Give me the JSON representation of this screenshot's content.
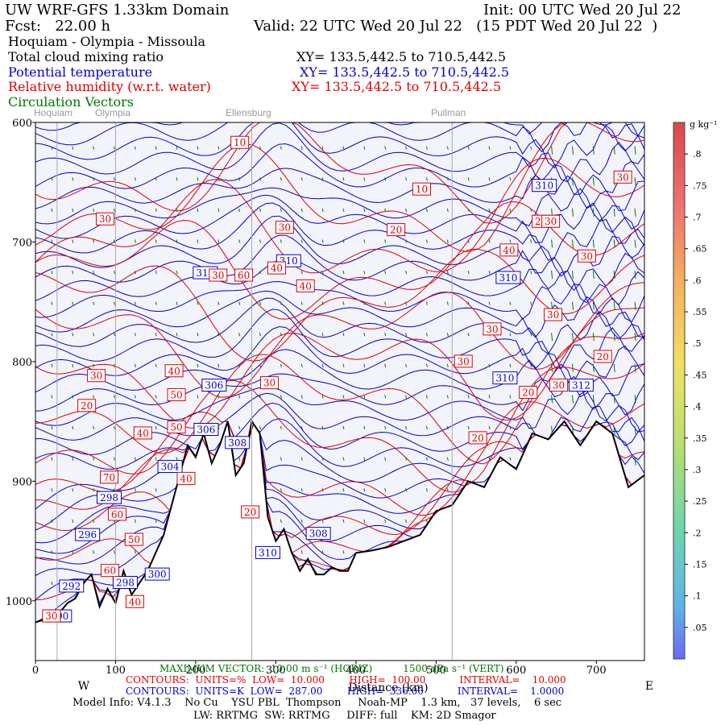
{
  "header": {
    "model_domain": "UW WRF-GFS 1.33km Domain",
    "init": "Init: 00 UTC Wed 20 Jul 22",
    "fcst": "Fcst:   22.00 h",
    "valid": "Valid: 22 UTC Wed 20 Jul 22   (15 PDT Wed 20 Jul 22  )",
    "route": "Hoquiam - Olympia - Missoula"
  },
  "fields": [
    {
      "label": "Total cloud mixing ratio",
      "xy": "XY= 133.5,442.5 to 710.5,442.5",
      "color": "#000000"
    },
    {
      "label": "Potential temperature",
      "xy": "XY= 133.5,442.5 to 710.5,442.5",
      "color": "#0000cc"
    },
    {
      "label": "Relative humidity (w.r.t. water)",
      "xy": "XY= 133.5,442.5 to 710.5,442.5",
      "color": "#dd0000"
    },
    {
      "label": "Circulation Vectors",
      "xy": "",
      "color": "#007700"
    }
  ],
  "places": [
    {
      "name": "Hoquiam",
      "km": 27
    },
    {
      "name": "Olympia",
      "km": 100
    },
    {
      "name": "Ellensburg",
      "km": 270
    },
    {
      "name": "Pullman",
      "km": 520
    }
  ],
  "chart_data": {
    "type": "cross-section",
    "xlabel": "Distance (km)",
    "ylabel": "",
    "xlim": [
      0,
      760
    ],
    "ylim": [
      1050,
      600
    ],
    "x_ticks": [
      0,
      100,
      200,
      300,
      400,
      500,
      600,
      700
    ],
    "y_ticks": [
      600,
      700,
      800,
      900,
      1000
    ],
    "y_tick_labels": [
      "600",
      "700",
      "800",
      "900",
      "1000"
    ],
    "direction_left": "W",
    "direction_right": "E",
    "terrain": {
      "x": [
        0,
        10,
        20,
        30,
        40,
        50,
        60,
        70,
        80,
        90,
        100,
        110,
        120,
        130,
        140,
        150,
        160,
        170,
        180,
        190,
        200,
        210,
        220,
        230,
        240,
        250,
        260,
        270,
        280,
        290,
        300,
        310,
        320,
        330,
        340,
        350,
        360,
        370,
        380,
        390,
        400,
        420,
        440,
        460,
        480,
        500,
        520,
        540,
        560,
        580,
        600,
        620,
        640,
        660,
        680,
        700,
        720,
        740,
        760
      ],
      "p": [
        1018,
        1016,
        1012,
        1010,
        1002,
        998,
        985,
        978,
        1005,
        990,
        1002,
        975,
        995,
        985,
        975,
        960,
        945,
        920,
        895,
        870,
        880,
        860,
        885,
        870,
        850,
        895,
        885,
        850,
        860,
        930,
        950,
        940,
        960,
        975,
        965,
        978,
        978,
        972,
        975,
        975,
        960,
        958,
        955,
        950,
        945,
        925,
        920,
        900,
        905,
        880,
        890,
        860,
        865,
        850,
        870,
        850,
        860,
        905,
        895
      ]
    },
    "theta_labels": [
      {
        "value": "290",
        "km": 30,
        "p": 1013
      },
      {
        "value": "292",
        "km": 45,
        "p": 988
      },
      {
        "value": "296",
        "km": 65,
        "p": 945
      },
      {
        "value": "298",
        "km": 92,
        "p": 914
      },
      {
        "value": "298",
        "km": 112,
        "p": 985
      },
      {
        "value": "300",
        "km": 152,
        "p": 978
      },
      {
        "value": "304",
        "km": 168,
        "p": 888
      },
      {
        "value": "306",
        "km": 213,
        "p": 857
      },
      {
        "value": "306",
        "km": 223,
        "p": 820
      },
      {
        "value": "308",
        "km": 252,
        "p": 868
      },
      {
        "value": "310",
        "km": 290,
        "p": 960
      },
      {
        "value": "308",
        "km": 353,
        "p": 944
      },
      {
        "value": "310",
        "km": 212,
        "p": 726
      },
      {
        "value": "310",
        "km": 316,
        "p": 716
      },
      {
        "value": "310",
        "km": 590,
        "p": 730
      },
      {
        "value": "310",
        "km": 586,
        "p": 814
      },
      {
        "value": "312",
        "km": 681,
        "p": 820
      },
      {
        "value": "310",
        "km": 635,
        "p": 653
      }
    ],
    "rh_labels": [
      {
        "value": "10",
        "km": 255,
        "p": 617
      },
      {
        "value": "10",
        "km": 482,
        "p": 656
      },
      {
        "value": "20",
        "km": 450,
        "p": 690
      },
      {
        "value": "30",
        "km": 87,
        "p": 681
      },
      {
        "value": "30",
        "km": 311,
        "p": 688
      },
      {
        "value": "40",
        "km": 301,
        "p": 722
      },
      {
        "value": "30",
        "km": 228,
        "p": 728
      },
      {
        "value": "60",
        "km": 260,
        "p": 728
      },
      {
        "value": "40",
        "km": 337,
        "p": 737
      },
      {
        "value": "30",
        "km": 76,
        "p": 812
      },
      {
        "value": "20",
        "km": 64,
        "p": 837
      },
      {
        "value": "40",
        "km": 134,
        "p": 860
      },
      {
        "value": "40",
        "km": 173,
        "p": 808
      },
      {
        "value": "30",
        "km": 292,
        "p": 818
      },
      {
        "value": "50",
        "km": 176,
        "p": 828
      },
      {
        "value": "50",
        "km": 176,
        "p": 855
      },
      {
        "value": "40",
        "km": 188,
        "p": 898
      },
      {
        "value": "70",
        "km": 92,
        "p": 897
      },
      {
        "value": "60",
        "km": 102,
        "p": 928
      },
      {
        "value": "50",
        "km": 123,
        "p": 949
      },
      {
        "value": "60",
        "km": 93,
        "p": 975
      },
      {
        "value": "40",
        "km": 124,
        "p": 1001
      },
      {
        "value": "30",
        "km": 20,
        "p": 1013
      },
      {
        "value": "20",
        "km": 268,
        "p": 926
      },
      {
        "value": "20",
        "km": 552,
        "p": 864
      },
      {
        "value": "30",
        "km": 534,
        "p": 800
      },
      {
        "value": "30",
        "km": 570,
        "p": 773
      },
      {
        "value": "30",
        "km": 646,
        "p": 761
      },
      {
        "value": "30",
        "km": 688,
        "p": 712
      },
      {
        "value": "40",
        "km": 591,
        "p": 707
      },
      {
        "value": "20",
        "km": 615,
        "p": 826
      },
      {
        "value": "30",
        "km": 653,
        "p": 820
      },
      {
        "value": "20",
        "km": 708,
        "p": 796
      },
      {
        "value": "20",
        "km": 631,
        "p": 683
      },
      {
        "value": "30",
        "km": 643,
        "p": 683
      },
      {
        "value": "30",
        "km": 733,
        "p": 646
      }
    ],
    "colorbar": {
      "unit": "g kg⁻¹",
      "ticks": [
        ".8",
        ".75",
        ".7",
        ".65",
        ".6",
        ".55",
        ".5",
        ".45",
        ".4",
        ".35",
        ".3",
        ".25",
        ".2",
        ".15",
        ".1",
        ".05"
      ],
      "range": [
        0,
        0.85
      ]
    }
  },
  "footer": {
    "max_vector": "MAXIMUM VECTOR:  10.00 m s⁻¹ (HORIZ)          1500 dPa s⁻¹ (VERT)",
    "rh_contours": "CONTOURS:  UNITS=%  LOW=  10.000        HIGH=  100.00           INTERVAL=    10.000",
    "theta_contours": "CONTOURS:  UNITS=K  LOW=  287.00        HIGH=  336.00           INTERVAL=    1.0000",
    "model_info": "Model Info: V4.1.3    No Cu    YSU PBL  Thompson     Noah-MP    1.3 km,   37 levels,    6 sec",
    "radiation": "LW: RRTMG  SW: RRTMG     DIFF: full    KM: 2D Smagor"
  },
  "colors": {
    "theta": "#0000cc",
    "rh": "#dd0000",
    "vectors": "#007700",
    "terrain": "#000000",
    "cloud_fill": "#f3f3fb"
  }
}
